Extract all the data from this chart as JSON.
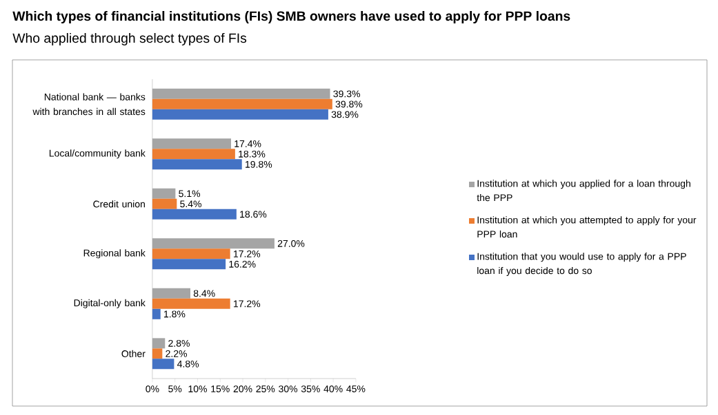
{
  "chart_data": {
    "type": "bar",
    "orientation": "horizontal",
    "title": "Which types of financial institutions (FIs) SMB owners have used to apply for PPP loans",
    "subtitle": "Who applied through select types of FIs",
    "categories": [
      "National bank — banks with branches in all states",
      "Local/community bank",
      "Credit union",
      "Regional bank",
      "Digital-only bank",
      "Other"
    ],
    "series": [
      {
        "name": "Institution at which you applied for a loan through the PPP",
        "color": "#a5a5a5",
        "values": [
          39.3,
          17.4,
          5.1,
          27.0,
          8.4,
          2.8
        ],
        "value_labels": [
          "39.3%",
          "17.4%",
          "5.1%",
          "27.0%",
          "8.4%",
          "2.8%"
        ]
      },
      {
        "name": "Institution at which you attempted to apply for your PPP loan",
        "color": "#ed7d31",
        "values": [
          39.8,
          18.3,
          5.4,
          17.2,
          17.2,
          2.2
        ],
        "value_labels": [
          "39.8%",
          "18.3%",
          "5.4%",
          "17.2%",
          "17.2%",
          "2.2%"
        ]
      },
      {
        "name": "Institution that you would use to apply for a PPP loan if you decide to do so",
        "color": "#4472c4",
        "values": [
          38.9,
          19.8,
          18.6,
          16.2,
          1.8,
          4.8
        ],
        "value_labels": [
          "38.9%",
          "19.8%",
          "18.6%",
          "16.2%",
          "1.8%",
          "4.8%"
        ]
      }
    ],
    "xlim": [
      0,
      45
    ],
    "xticks": [
      {
        "value": 0,
        "label": "0%"
      },
      {
        "value": 5,
        "label": "5%"
      },
      {
        "value": 10,
        "label": "10%"
      },
      {
        "value": 15,
        "label": "15%"
      },
      {
        "value": 20,
        "label": "20%"
      },
      {
        "value": 25,
        "label": "25%"
      },
      {
        "value": 30,
        "label": "30%"
      },
      {
        "value": 35,
        "label": "35%"
      },
      {
        "value": 40,
        "label": "40%"
      },
      {
        "value": 45,
        "label": "45%"
      }
    ],
    "legend": "right",
    "grid": false
  }
}
